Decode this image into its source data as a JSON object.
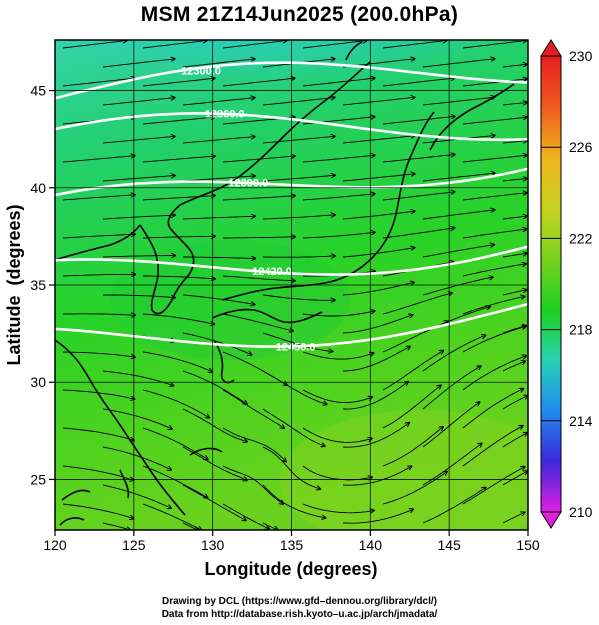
{
  "title": "MSM 21Z14Jun2025 (200.0hPa)",
  "x_axis": {
    "label": "Longitude (degrees)",
    "ticks": [
      "120",
      "125",
      "130",
      "135",
      "140",
      "145",
      "150"
    ],
    "range": [
      120,
      150
    ]
  },
  "y_axis": {
    "label": "Latitude  (degrees)",
    "ticks": [
      "25",
      "30",
      "35",
      "40",
      "45"
    ],
    "range": [
      22.4,
      47.6
    ]
  },
  "colorbar": {
    "min": 210,
    "max": 230,
    "ticks": [
      "230",
      "226",
      "222",
      "218",
      "214",
      "210"
    ],
    "colors": [
      "#e21ee0",
      "#3c28dc",
      "#1e8cf0",
      "#28d2b4",
      "#1ed21e",
      "#7ad21e",
      "#c8d21e",
      "#f0b41e",
      "#f05a1e",
      "#e61e1e"
    ]
  },
  "contours": [
    {
      "label": "12300.0",
      "lat_west": 44.6,
      "lat_east": 46.3
    },
    {
      "label": "12360.0",
      "lat_west": 42.4,
      "lat_east": 43.6
    },
    {
      "label": "12390.0",
      "lat_west": 38.6,
      "lat_east": 41.9
    },
    {
      "label": "12420.0",
      "lat_west": 35.2,
      "lat_east": 37.4
    },
    {
      "label": "12450.0",
      "lat_west": 32.0,
      "lat_east": 33.8
    }
  ],
  "footer": {
    "line1": "Drawing by DCL (https://www.gfd–dennou.org/library/dcl/)",
    "line2": "Data from http://database.rish.kyoto–u.ac.jp/arch/jmadata/"
  }
}
